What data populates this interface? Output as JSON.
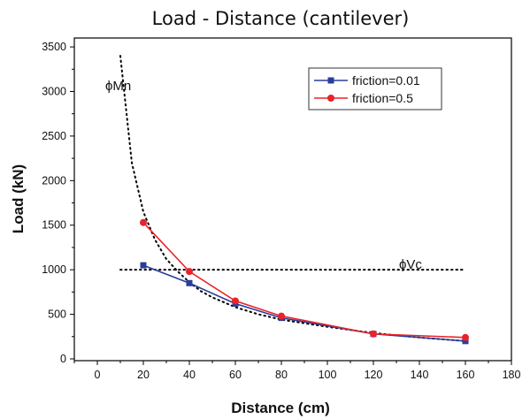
{
  "chart_data": {
    "type": "line",
    "title": "Load - Distance (cantilever)",
    "xlabel": "Distance (cm)",
    "ylabel": "Load (kN)",
    "xlim": [
      -10,
      180
    ],
    "ylim": [
      -20,
      3600
    ],
    "x_ticks": [
      0,
      20,
      40,
      60,
      80,
      100,
      120,
      140,
      160,
      180
    ],
    "y_ticks": [
      0,
      500,
      1000,
      1500,
      2000,
      2500,
      3000,
      3500
    ],
    "grid": false,
    "legend_position": "top-right",
    "series": [
      {
        "name": "friction=0.01",
        "color": "#2a3d9a",
        "marker": "square",
        "x": [
          20,
          40,
          60,
          80,
          120,
          160
        ],
        "y": [
          1050,
          850,
          620,
          460,
          280,
          200
        ]
      },
      {
        "name": "friction=0.5",
        "color": "#e8232a",
        "marker": "circle",
        "x": [
          20,
          40,
          60,
          80,
          120,
          160
        ],
        "y": [
          1530,
          980,
          650,
          480,
          280,
          240
        ]
      }
    ],
    "reference_curves": [
      {
        "label": "ϕMn",
        "style": "dotted",
        "x": [
          10,
          15,
          20,
          25,
          30,
          35,
          40,
          45,
          50,
          60,
          70,
          80,
          100,
          120,
          140,
          160
        ],
        "y": [
          3400,
          2200,
          1650,
          1340,
          1120,
          980,
          860,
          760,
          690,
          580,
          500,
          440,
          360,
          290,
          240,
          200
        ]
      },
      {
        "label": "ϕVc",
        "style": "dotted",
        "x": [
          10,
          160
        ],
        "y": [
          1000,
          1000
        ]
      }
    ]
  }
}
